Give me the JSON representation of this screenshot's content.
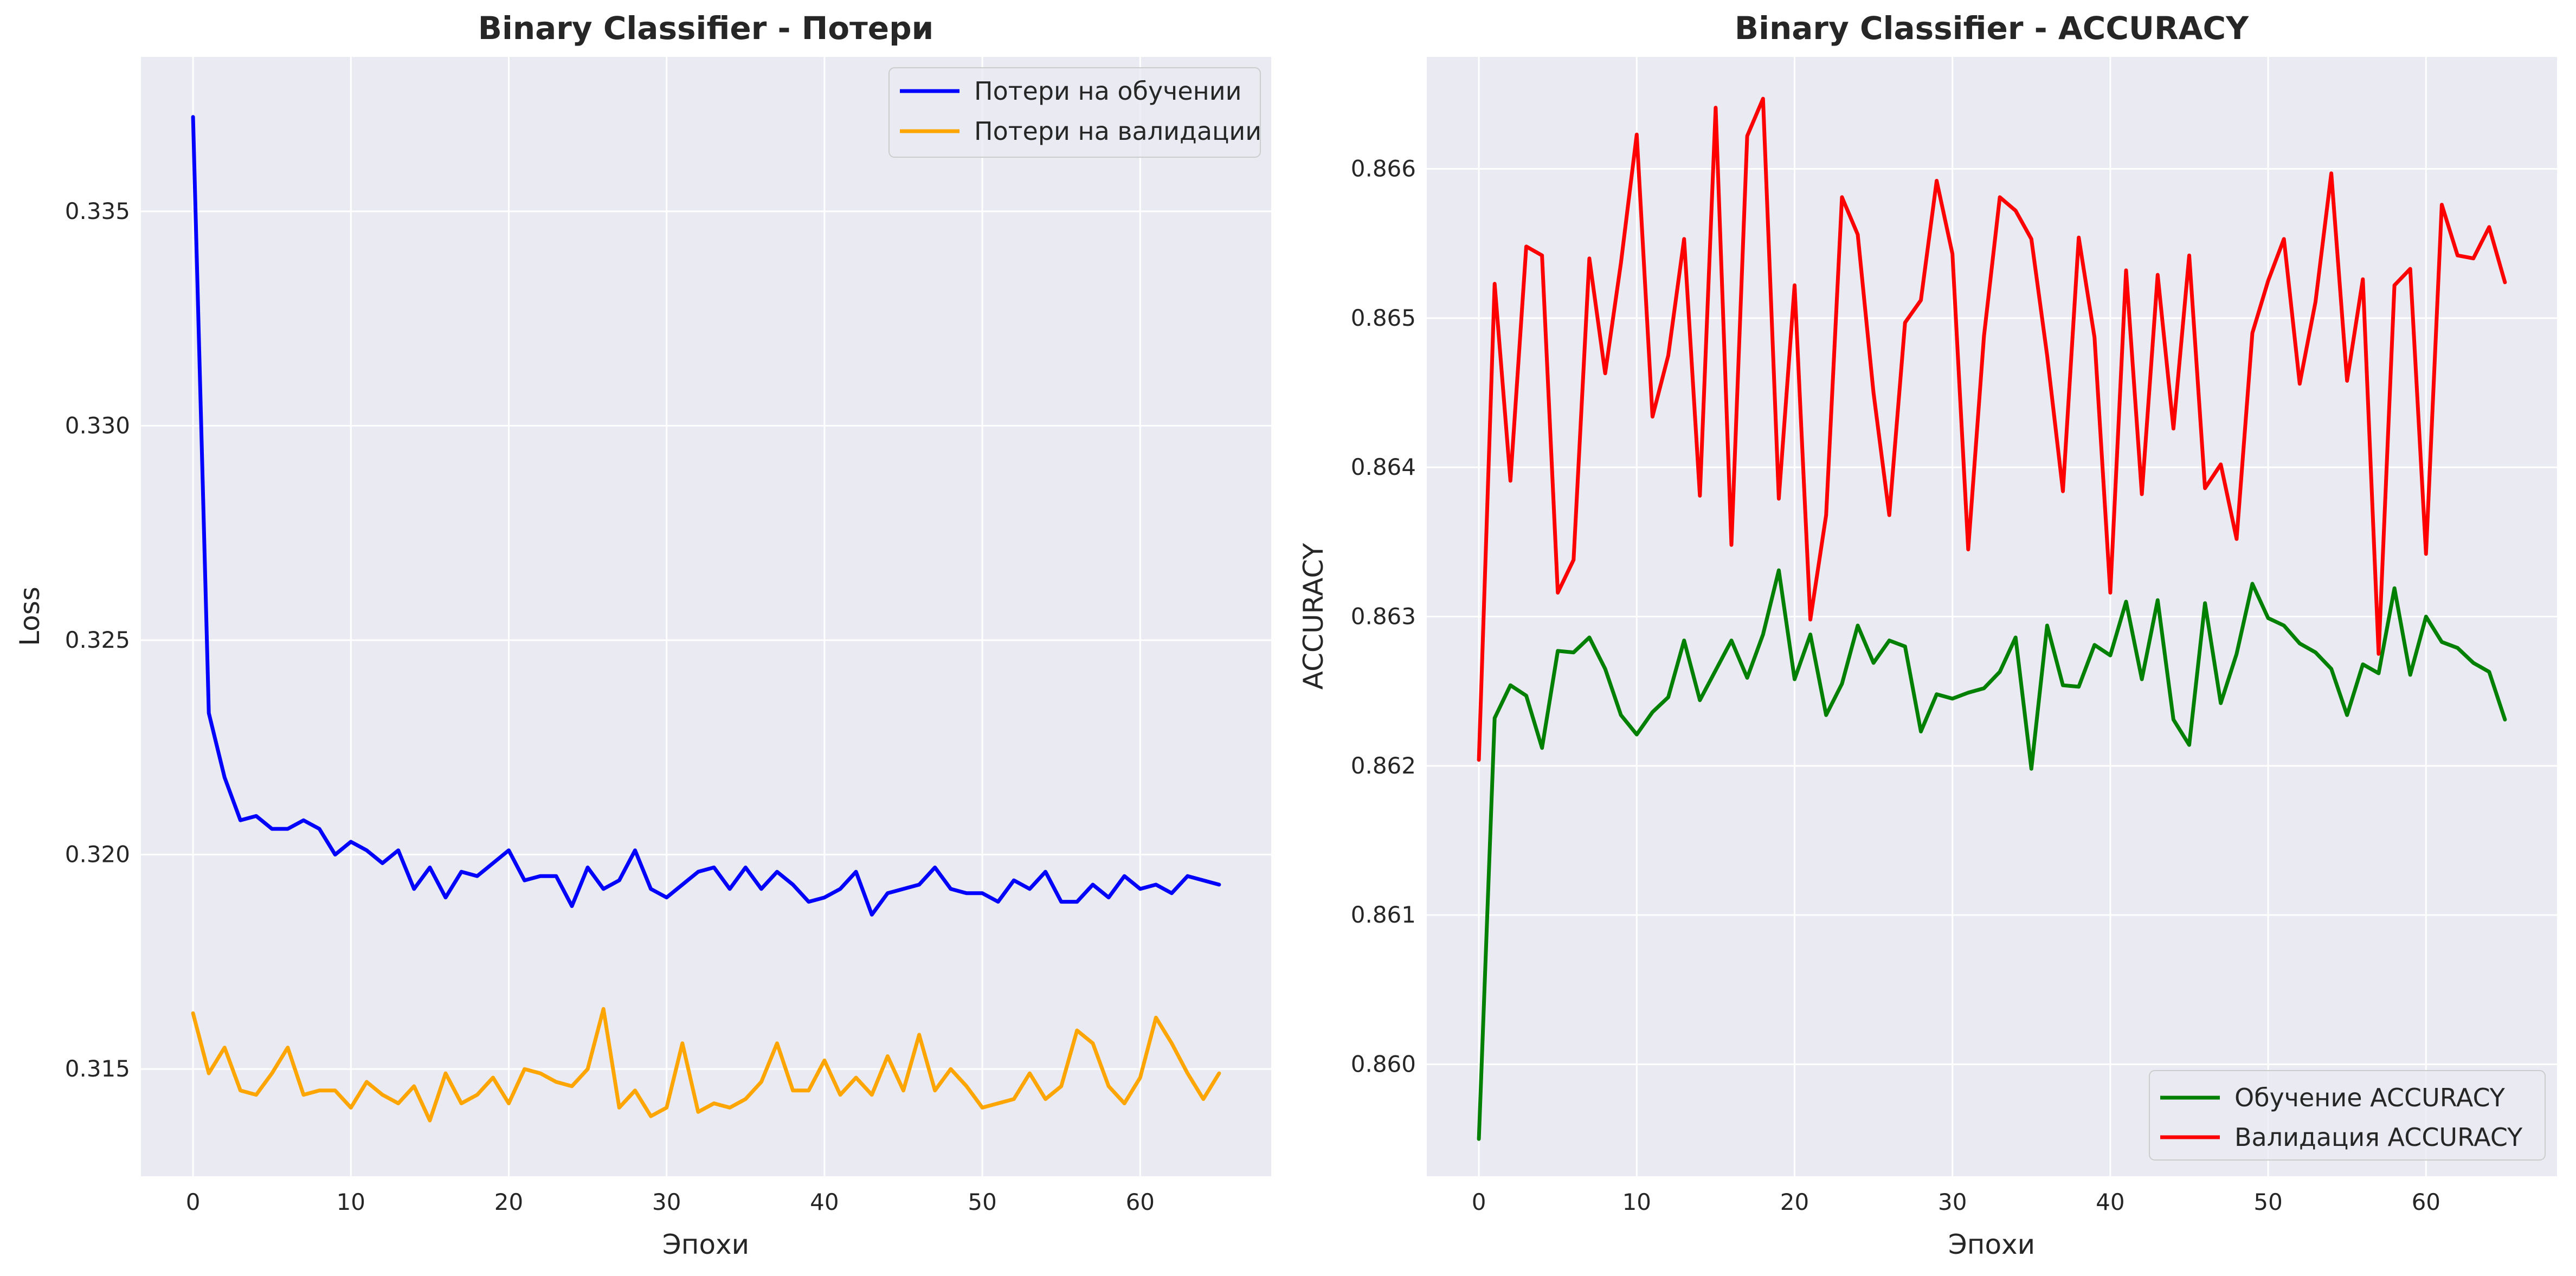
{
  "chart_data": [
    {
      "type": "line",
      "title": "Binary Classifier - Потери",
      "xlabel": "Эпохи",
      "ylabel": "Loss",
      "xlim": [
        -3.3,
        68.3
      ],
      "ylim": [
        0.3125,
        0.3386
      ],
      "xticks": [
        0,
        10,
        20,
        30,
        40,
        50,
        60
      ],
      "xtick_labels": [
        "0",
        "10",
        "20",
        "30",
        "40",
        "50",
        "60"
      ],
      "yticks": [
        0.315,
        0.32,
        0.325,
        0.33,
        0.335
      ],
      "ytick_labels": [
        "0.315",
        "0.320",
        "0.325",
        "0.330",
        "0.335"
      ],
      "grid": true,
      "legend_position": "upper right",
      "series": [
        {
          "name": "Потери на обучении",
          "color": "#0000ff",
          "x": [
            0,
            1,
            2,
            3,
            4,
            5,
            6,
            7,
            8,
            9,
            10,
            11,
            12,
            13,
            14,
            15,
            16,
            17,
            18,
            19,
            20,
            21,
            22,
            23,
            24,
            25,
            26,
            27,
            28,
            29,
            30,
            31,
            32,
            33,
            34,
            35,
            36,
            37,
            38,
            39,
            40,
            41,
            42,
            43,
            44,
            45,
            46,
            47,
            48,
            49,
            50,
            51,
            52,
            53,
            54,
            55,
            56,
            57,
            58,
            59,
            60,
            61,
            62,
            63,
            64,
            65
          ],
          "values": [
            0.3372,
            0.3233,
            0.3218,
            0.3208,
            0.3209,
            0.3206,
            0.3206,
            0.3208,
            0.3206,
            0.32,
            0.3203,
            0.3201,
            0.3198,
            0.3201,
            0.3192,
            0.3197,
            0.319,
            0.3196,
            0.3195,
            0.3198,
            0.3201,
            0.3194,
            0.3195,
            0.3195,
            0.3188,
            0.3197,
            0.3192,
            0.3194,
            0.3201,
            0.3192,
            0.319,
            0.3193,
            0.3196,
            0.3197,
            0.3192,
            0.3197,
            0.3192,
            0.3196,
            0.3193,
            0.3189,
            0.319,
            0.3192,
            0.3196,
            0.3186,
            0.3191,
            0.3192,
            0.3193,
            0.3197,
            0.3192,
            0.3191,
            0.3191,
            0.3189,
            0.3194,
            0.3192,
            0.3196,
            0.3189,
            0.3189,
            0.3193,
            0.319,
            0.3195,
            0.3192,
            0.3193,
            0.3191,
            0.3195,
            0.3194,
            0.3193
          ]
        },
        {
          "name": "Потери на валидации",
          "color": "#ffa500",
          "x": [
            0,
            1,
            2,
            3,
            4,
            5,
            6,
            7,
            8,
            9,
            10,
            11,
            12,
            13,
            14,
            15,
            16,
            17,
            18,
            19,
            20,
            21,
            22,
            23,
            24,
            25,
            26,
            27,
            28,
            29,
            30,
            31,
            32,
            33,
            34,
            35,
            36,
            37,
            38,
            39,
            40,
            41,
            42,
            43,
            44,
            45,
            46,
            47,
            48,
            49,
            50,
            51,
            52,
            53,
            54,
            55,
            56,
            57,
            58,
            59,
            60,
            61,
            62,
            63,
            64,
            65
          ],
          "values": [
            0.3163,
            0.3149,
            0.3155,
            0.3145,
            0.3144,
            0.3149,
            0.3155,
            0.3144,
            0.3145,
            0.3145,
            0.3141,
            0.3147,
            0.3144,
            0.3142,
            0.3146,
            0.3138,
            0.3149,
            0.3142,
            0.3144,
            0.3148,
            0.3142,
            0.315,
            0.3149,
            0.3147,
            0.3146,
            0.315,
            0.3164,
            0.3141,
            0.3145,
            0.3139,
            0.3141,
            0.3156,
            0.314,
            0.3142,
            0.3141,
            0.3143,
            0.3147,
            0.3156,
            0.3145,
            0.3145,
            0.3152,
            0.3144,
            0.3148,
            0.3144,
            0.3153,
            0.3145,
            0.3158,
            0.3145,
            0.315,
            0.3146,
            0.3141,
            0.3142,
            0.3143,
            0.3149,
            0.3143,
            0.3146,
            0.3159,
            0.3156,
            0.3146,
            0.3142,
            0.3148,
            0.3162,
            0.3156,
            0.3149,
            0.3143,
            0.3149
          ]
        }
      ]
    },
    {
      "type": "line",
      "title": "Binary Classifier - ACCURACY",
      "xlabel": "Эпохи",
      "ylabel": "ACCURACY",
      "xlim": [
        -3.3,
        68.3
      ],
      "ylim": [
        0.85925,
        0.86675
      ],
      "xticks": [
        0,
        10,
        20,
        30,
        40,
        50,
        60
      ],
      "xtick_labels": [
        "0",
        "10",
        "20",
        "30",
        "40",
        "50",
        "60"
      ],
      "yticks": [
        0.86,
        0.861,
        0.862,
        0.863,
        0.864,
        0.865,
        0.866
      ],
      "ytick_labels": [
        "0.860",
        "0.861",
        "0.862",
        "0.863",
        "0.864",
        "0.865",
        "0.866"
      ],
      "grid": true,
      "legend_position": "lower right",
      "series": [
        {
          "name": "Обучение ACCURACY",
          "color": "#008000",
          "x": [
            0,
            1,
            2,
            3,
            4,
            5,
            6,
            7,
            8,
            9,
            10,
            11,
            12,
            13,
            14,
            15,
            16,
            17,
            18,
            19,
            20,
            21,
            22,
            23,
            24,
            25,
            26,
            27,
            28,
            29,
            30,
            31,
            32,
            33,
            34,
            35,
            36,
            37,
            38,
            39,
            40,
            41,
            42,
            43,
            44,
            45,
            46,
            47,
            48,
            49,
            50,
            51,
            52,
            53,
            54,
            55,
            56,
            57,
            58,
            59,
            60,
            61,
            62,
            63,
            64,
            65
          ],
          "values": [
            0.8595,
            0.86232,
            0.86254,
            0.86247,
            0.86212,
            0.86277,
            0.86276,
            0.86286,
            0.86265,
            0.86234,
            0.86221,
            0.86236,
            0.86246,
            0.86284,
            0.86244,
            0.86264,
            0.86284,
            0.86259,
            0.86288,
            0.86331,
            0.86258,
            0.86288,
            0.86234,
            0.86255,
            0.86294,
            0.86269,
            0.86284,
            0.8628,
            0.86223,
            0.86248,
            0.86245,
            0.86249,
            0.86252,
            0.86263,
            0.86286,
            0.86198,
            0.86294,
            0.86254,
            0.86253,
            0.86281,
            0.86274,
            0.8631,
            0.86258,
            0.86311,
            0.86231,
            0.86214,
            0.86309,
            0.86242,
            0.86275,
            0.86322,
            0.86299,
            0.86294,
            0.86282,
            0.86276,
            0.86265,
            0.86234,
            0.86268,
            0.86262,
            0.86319,
            0.86261,
            0.863,
            0.86283,
            0.86279,
            0.86269,
            0.86263,
            0.86231
          ]
        },
        {
          "name": "Валидация ACCURACY",
          "color": "#ff0000",
          "x": [
            0,
            1,
            2,
            3,
            4,
            5,
            6,
            7,
            8,
            9,
            10,
            11,
            12,
            13,
            14,
            15,
            16,
            17,
            18,
            19,
            20,
            21,
            22,
            23,
            24,
            25,
            26,
            27,
            28,
            29,
            30,
            31,
            32,
            33,
            34,
            35,
            36,
            37,
            38,
            39,
            40,
            41,
            42,
            43,
            44,
            45,
            46,
            47,
            48,
            49,
            50,
            51,
            52,
            53,
            54,
            55,
            56,
            57,
            58,
            59,
            60,
            61,
            62,
            63,
            64,
            65
          ],
          "values": [
            0.86204,
            0.86523,
            0.86391,
            0.86548,
            0.86542,
            0.86316,
            0.86338,
            0.8654,
            0.86463,
            0.86537,
            0.86623,
            0.86434,
            0.86475,
            0.86553,
            0.86381,
            0.86641,
            0.86348,
            0.86622,
            0.86647,
            0.86379,
            0.86522,
            0.86298,
            0.86368,
            0.86581,
            0.86556,
            0.8645,
            0.86368,
            0.86497,
            0.86512,
            0.86592,
            0.86543,
            0.86345,
            0.86488,
            0.86581,
            0.86572,
            0.86553,
            0.86475,
            0.86384,
            0.86554,
            0.86487,
            0.86316,
            0.86532,
            0.86382,
            0.86529,
            0.86426,
            0.86542,
            0.86386,
            0.86402,
            0.86352,
            0.8649,
            0.86525,
            0.86553,
            0.86456,
            0.86511,
            0.86597,
            0.86458,
            0.86526,
            0.86275,
            0.86522,
            0.86533,
            0.86342,
            0.86576,
            0.86542,
            0.8654,
            0.86561,
            0.86524
          ]
        }
      ]
    }
  ]
}
